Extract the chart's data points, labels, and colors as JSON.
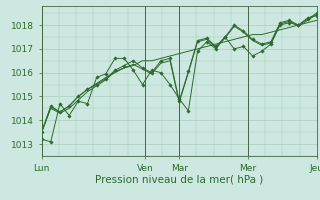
{
  "xlabel": "Pression niveau de la mer( hPa )",
  "background_color": "#cde8e0",
  "grid_color": "#a0c8b8",
  "line_color": "#2d6a2d",
  "marker_color": "#2d6a2d",
  "ylim": [
    1012.5,
    1018.8
  ],
  "yticks": [
    1013,
    1014,
    1015,
    1016,
    1017,
    1018
  ],
  "xtick_labels": [
    "Lun",
    "Ven",
    "Mar",
    "Mer",
    "Jeu"
  ],
  "xtick_positions": [
    0,
    3,
    4,
    6,
    8
  ],
  "vline_positions": [
    0,
    3,
    4,
    6,
    8
  ],
  "series": [
    [
      1013.2,
      1013.1,
      1014.7,
      1014.2,
      1014.8,
      1014.7,
      1015.8,
      1015.95,
      1016.6,
      1016.6,
      1016.1,
      1015.5,
      1016.1,
      1016.0,
      1015.5,
      1014.9,
      1014.4,
      1016.9,
      1017.3,
      1017.0,
      1017.5,
      1017.0,
      1017.1,
      1016.7,
      1016.9,
      1017.2,
      1018.0,
      1018.1,
      1018.0,
      1018.3,
      1018.4
    ],
    [
      1013.5,
      1014.55,
      1014.35,
      1014.6,
      1015.0,
      1015.3,
      1015.55,
      1015.8,
      1016.0,
      1016.2,
      1016.3,
      1016.5,
      1016.5,
      1016.6,
      1016.7,
      1016.8,
      1016.9,
      1017.0,
      1017.1,
      1017.2,
      1017.3,
      1017.4,
      1017.5,
      1017.6,
      1017.6,
      1017.7,
      1017.8,
      1017.9,
      1018.0,
      1018.1,
      1018.2
    ],
    [
      1013.5,
      1014.6,
      1014.35,
      1014.6,
      1015.0,
      1015.3,
      1015.5,
      1015.75,
      1016.1,
      1016.3,
      1016.5,
      1016.2,
      1016.0,
      1016.5,
      1016.6,
      1014.8,
      1016.05,
      1017.35,
      1017.45,
      1017.1,
      1017.5,
      1018.0,
      1017.75,
      1017.4,
      1017.2,
      1017.3,
      1018.1,
      1018.2,
      1018.0,
      1018.25,
      1018.5
    ],
    [
      1013.5,
      1014.5,
      1014.3,
      1014.5,
      1014.85,
      1015.2,
      1015.45,
      1015.7,
      1016.05,
      1016.2,
      1016.35,
      1016.15,
      1015.95,
      1016.4,
      1016.5,
      1014.75,
      1016.0,
      1017.3,
      1017.4,
      1017.05,
      1017.45,
      1017.95,
      1017.7,
      1017.35,
      1017.15,
      1017.25,
      1018.05,
      1018.15,
      1017.95,
      1018.2,
      1018.45
    ]
  ],
  "n_points": 31,
  "x_total_days": 8,
  "figsize": [
    3.2,
    2.0
  ],
  "dpi": 100,
  "tick_fontsize": 6.5,
  "label_fontsize": 7.5
}
